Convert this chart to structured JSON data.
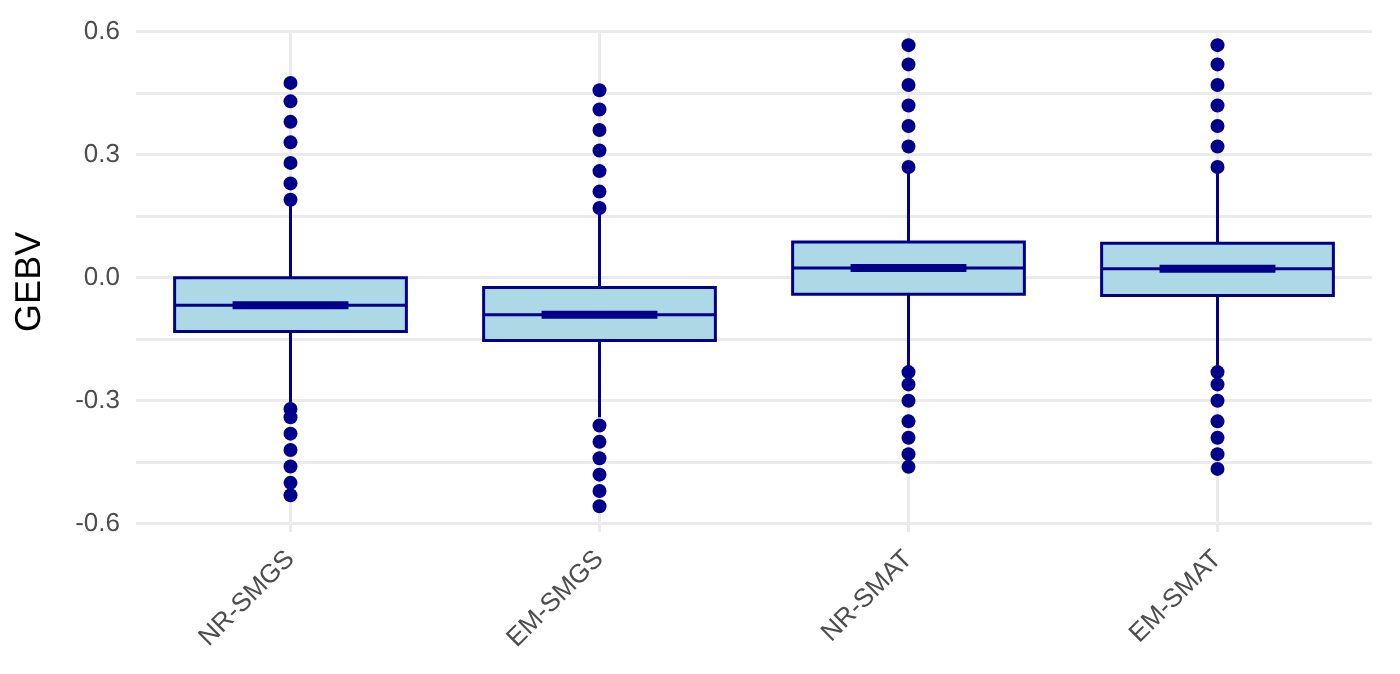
{
  "chart_data": {
    "type": "box",
    "ylabel": "GEBV",
    "categories": [
      "NR-SMGS",
      "EM-SMGS",
      "NR-SMAT",
      "EM-SMAT"
    ],
    "ylim": [
      -0.62,
      0.6
    ],
    "yticks": [
      -0.6,
      {
        "value": -0.45,
        "label": null
      },
      -0.3,
      {
        "value": -0.15,
        "label": null
      },
      {
        "value": 0,
        "label": "0.0"
      },
      {
        "value": 0.15,
        "label": null
      },
      0.3,
      {
        "value": 0.45,
        "label": null
      },
      0.6
    ],
    "grid": true,
    "legend": false,
    "series": [
      {
        "color": "#add8e6",
        "boxes": [
          {
            "low": -0.31,
            "q1": -0.131,
            "median": -0.067,
            "q3": 0.0,
            "high": 0.18,
            "outliers": [
              -0.53,
              -0.5,
              -0.46,
              -0.42,
              -0.38,
              -0.34,
              -0.32,
              0.19,
              0.23,
              0.28,
              0.33,
              0.38,
              0.43,
              0.475
            ]
          },
          {
            "low": -0.34,
            "q1": -0.153,
            "median": -0.09,
            "q3": -0.024,
            "high": 0.165,
            "outliers": [
              -0.557,
              -0.52,
              -0.48,
              -0.44,
              -0.4,
              -0.36,
              0.17,
              0.21,
              0.26,
              0.31,
              0.36,
              0.41,
              0.457
            ]
          },
          {
            "low": -0.223,
            "q1": -0.04,
            "median": 0.024,
            "q3": 0.087,
            "high": 0.265,
            "outliers": [
              -0.461,
              -0.43,
              -0.39,
              -0.35,
              -0.3,
              -0.26,
              -0.23,
              0.27,
              0.32,
              0.37,
              0.42,
              0.47,
              0.52,
              0.567
            ]
          },
          {
            "low": -0.223,
            "q1": -0.043,
            "median": 0.022,
            "q3": 0.084,
            "high": 0.265,
            "outliers": [
              -0.466,
              -0.43,
              -0.39,
              -0.35,
              -0.3,
              -0.26,
              -0.23,
              0.27,
              0.32,
              0.37,
              0.42,
              0.47,
              0.52,
              0.567
            ]
          }
        ]
      }
    ]
  }
}
